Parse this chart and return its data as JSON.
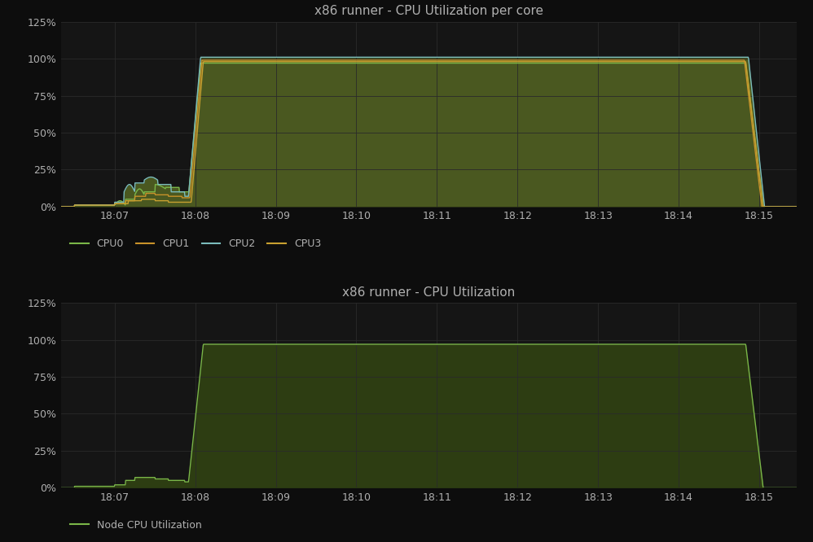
{
  "title1": "x86 runner - CPU Utilization per core",
  "title2": "x86 runner - CPU Utilization",
  "bg_color": "#0d0d0d",
  "plot_bg_color": "#151515",
  "grid_color": "#2a2a2a",
  "text_color": "#b0b0b0",
  "ylim": [
    0,
    125
  ],
  "yticks": [
    0,
    25,
    50,
    75,
    100,
    125
  ],
  "ytick_labels": [
    "0%",
    "25%",
    "50%",
    "75%",
    "100%",
    "125%"
  ],
  "xtick_labels": [
    "18:07",
    "18:08",
    "18:09",
    "18:10",
    "18:11",
    "18:12",
    "18:13",
    "18:14",
    "18:15"
  ],
  "cpu_colors": {
    "CPU0": "#7ab648",
    "CPU1": "#c8922a",
    "CPU2": "#7bbcbc",
    "CPU3": "#c8a030"
  },
  "fill_color": "#4a5820",
  "node_color": "#7ab648",
  "node_fill_color": "#2d3d12",
  "title_fontsize": 11,
  "tick_fontsize": 9,
  "legend_fontsize": 9
}
